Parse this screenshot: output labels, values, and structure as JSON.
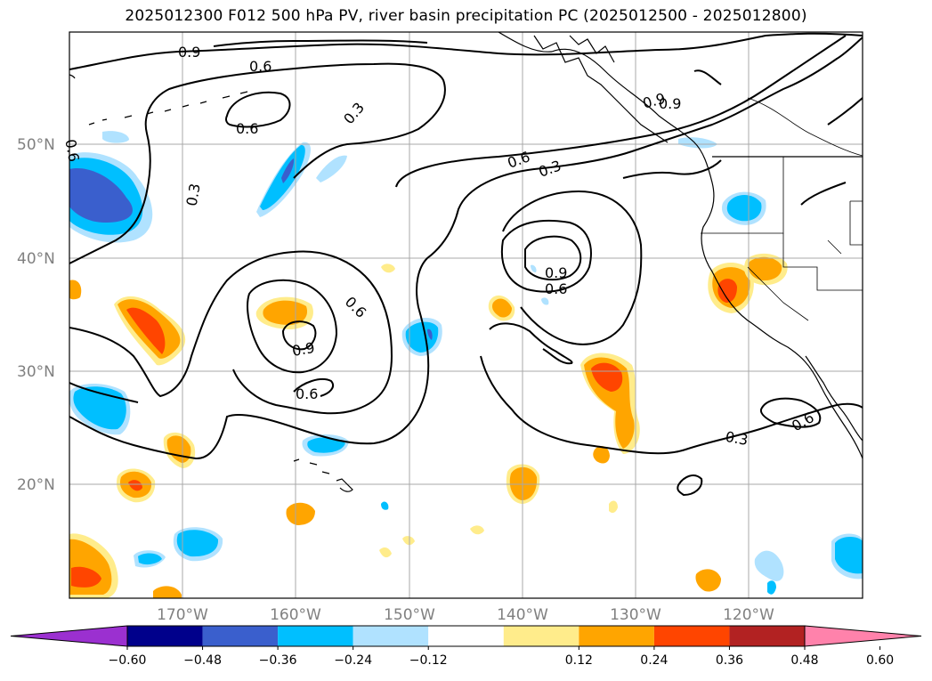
{
  "title": "2025012300 F012 500 hPa PV, river basin precipitation PC (2025012500 - 2025012800)",
  "map": {
    "lat_labels": [
      "50°N",
      "40°N",
      "30°N",
      "20°N"
    ],
    "lon_labels": [
      "170°W",
      "160°W",
      "150°W",
      "140°W",
      "130°W",
      "120°W"
    ],
    "contour_labels": [
      "0.9",
      "0.6",
      "0.6",
      "0.3",
      "0.3",
      "0.6",
      "0.3",
      "0.9",
      "0.6",
      "0.6",
      "0.9",
      "0.6",
      "0.9",
      "0.6",
      "0.3",
      "0.6",
      "0.9"
    ],
    "grid": true,
    "colors": {
      "neg_060": "#9b30d0",
      "neg_048": "#00008b",
      "neg_036": "#3a5fcd",
      "neg_024": "#00bfff",
      "neg_012": "#b0e2ff",
      "pos_012": "#ffec8b",
      "pos_024": "#ffa500",
      "pos_036": "#ff4500",
      "pos_048": "#b22222",
      "pos_060": "#ff82ab"
    }
  },
  "colorbar": {
    "ticks": [
      "−0.60",
      "−0.48",
      "−0.36",
      "−0.24",
      "−0.12",
      "0.12",
      "0.24",
      "0.36",
      "0.48",
      "0.60"
    ],
    "bins": [
      "#9b30d0",
      "#00008b",
      "#3a5fcd",
      "#00bfff",
      "#b0e2ff",
      "#ffffff",
      "#ffec8b",
      "#ffa500",
      "#ff4500",
      "#b22222",
      "#ff82ab"
    ]
  }
}
